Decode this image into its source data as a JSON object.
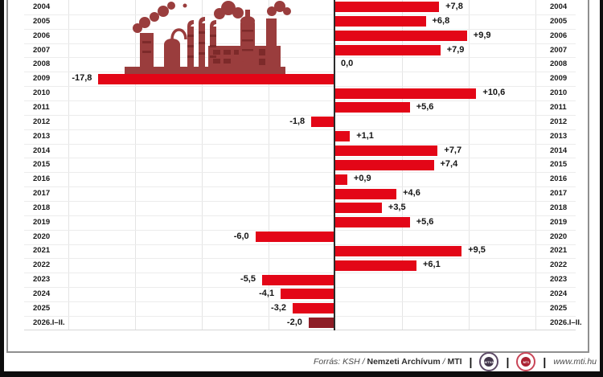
{
  "chart_data": {
    "type": "bar",
    "orientation": "horizontal",
    "categories": [
      "2004",
      "2005",
      "2006",
      "2007",
      "2008",
      "2009",
      "2010",
      "2011",
      "2012",
      "2013",
      "2014",
      "2015",
      "2016",
      "2017",
      "2018",
      "2019",
      "2020",
      "2021",
      "2022",
      "2023",
      "2024",
      "2025",
      "2026.I–II."
    ],
    "values": [
      7.8,
      6.8,
      9.9,
      7.9,
      0.0,
      -17.8,
      10.6,
      5.6,
      -1.8,
      1.1,
      7.7,
      7.4,
      0.9,
      4.6,
      3.5,
      5.6,
      -6.0,
      9.5,
      6.1,
      -5.5,
      -4.1,
      -3.2,
      -2.0
    ],
    "bar_labels": [
      "+7,8",
      "+6,8",
      "+9,9",
      "+7,9",
      "0,0",
      "-17,8",
      "+10,6",
      "+5,6",
      "-1,8",
      "+1,1",
      "+7,7",
      "+7,4",
      "+0,9",
      "+4,6",
      "+3,5",
      "+5,6",
      "-6,0",
      "+9,5",
      "+6,1",
      "-5,5",
      "-4,1",
      "-3,2",
      "-2,0"
    ],
    "title": "",
    "xlabel": "",
    "ylabel": "",
    "xlim": [
      -20,
      15
    ],
    "grid_step": 5,
    "grid": true,
    "year_labels_on_both_sides": true,
    "colors": {
      "bar": "#e30617",
      "final_bar": "#8e1d26",
      "illustration": "#9a3d3d"
    }
  },
  "footer": {
    "source_prefix": "Forrás: KSH /",
    "source_bold": "Nemzeti Archívum",
    "source_sep": "/",
    "source_mti": "MTI",
    "separator": "|",
    "badge1": "MTVA",
    "badge2": "MTI",
    "url": "www.mti.hu"
  }
}
